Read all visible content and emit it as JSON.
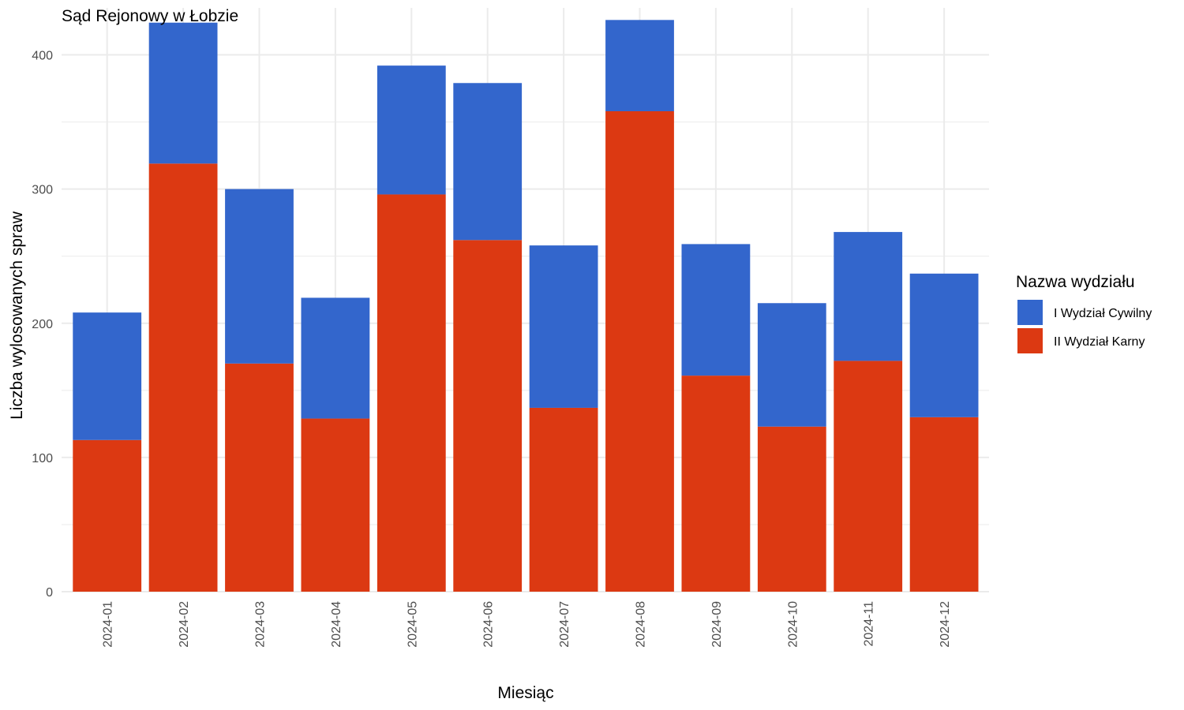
{
  "chart_data": {
    "type": "bar",
    "stacked": true,
    "title": "Sąd Rejonowy w Łobzie",
    "xlabel": "Miesiąc",
    "ylabel": "Liczba wylosowanych spraw",
    "ylim": [
      0,
      435
    ],
    "yticks": [
      0,
      100,
      200,
      300,
      400
    ],
    "grid": true,
    "legend_title": "Nazwa wydziału",
    "legend_position": "right",
    "categories": [
      "2024-01",
      "2024-02",
      "2024-03",
      "2024-04",
      "2024-05",
      "2024-06",
      "2024-07",
      "2024-08",
      "2024-09",
      "2024-10",
      "2024-11",
      "2024-12"
    ],
    "series": [
      {
        "name": "II Wydział Karny",
        "color": "#dc3912",
        "values": [
          113,
          319,
          170,
          129,
          296,
          262,
          137,
          358,
          161,
          123,
          172,
          130
        ]
      },
      {
        "name": "I Wydział Cywilny",
        "color": "#3366cc",
        "values": [
          95,
          105,
          130,
          90,
          96,
          117,
          121,
          68,
          98,
          92,
          96,
          107
        ]
      }
    ],
    "legend_order": [
      "I Wydział Cywilny",
      "II Wydział Karny"
    ]
  }
}
